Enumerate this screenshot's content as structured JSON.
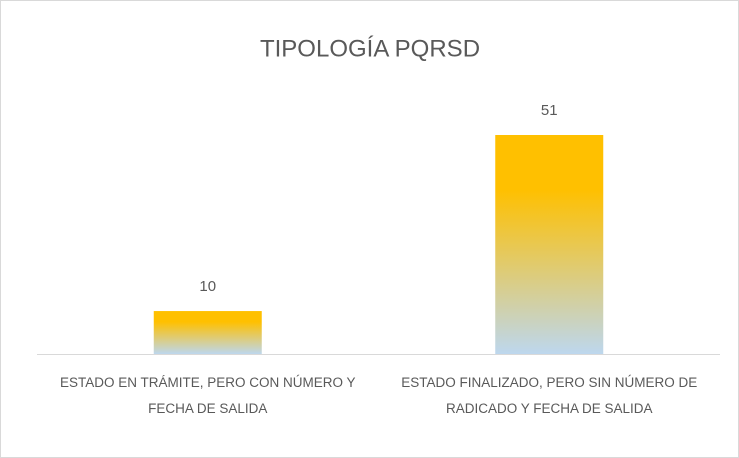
{
  "chart_data": {
    "type": "bar",
    "title": "TIPOLOGÍA PQRSD",
    "categories": [
      "ESTADO EN TRÁMITE, PERO CON NÚMERO Y FECHA DE SALIDA",
      "ESTADO FINALIZADO, PERO SIN NÚMERO DE RADICADO Y FECHA DE SALIDA"
    ],
    "values": [
      10,
      51
    ],
    "color": "#FFC000",
    "gradient_to": "#BDD7EE"
  }
}
